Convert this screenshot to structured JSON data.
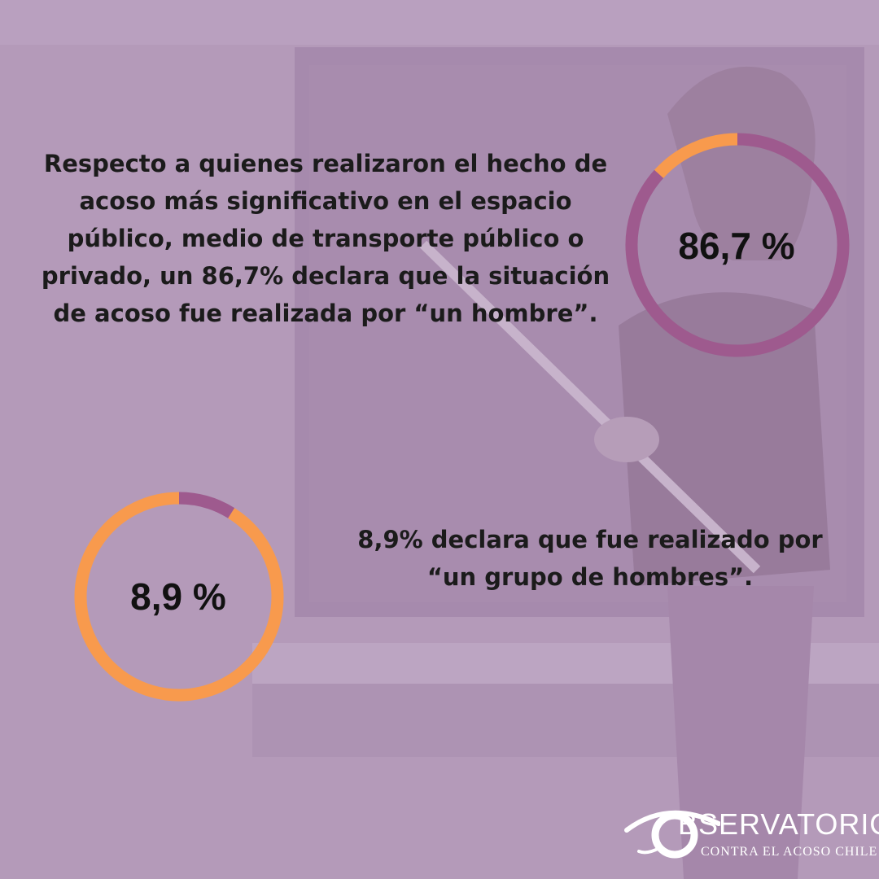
{
  "statement_1": "Respecto a quienes realizaron el hecho de acoso más significativo en el espacio público, medio de transporte público o privado, un 86,7% declara que la situación de acoso fue realizada por “un hombre”.",
  "statement_2": "8,9% declara que fue realizado por “un grupo de hombres”.",
  "logo": {
    "letter": "O",
    "word": "BSERVATORIO",
    "subtitle": "CONTRA EL ACOSO CHILE"
  },
  "colors": {
    "background": "#b49ab9",
    "purple": "#9e5a8e",
    "orange": "#f89a4d",
    "text": "#1b1b1b"
  },
  "chart_data": [
    {
      "type": "pie",
      "style": "donut",
      "label": "86,7 %",
      "values": [
        86.7,
        13.3
      ],
      "colors": [
        "#9e5a8e",
        "#f89a4d"
      ]
    },
    {
      "type": "pie",
      "style": "donut",
      "label": "8,9 %",
      "values": [
        8.9,
        91.1
      ],
      "colors": [
        "#9e5a8e",
        "#f89a4d"
      ]
    }
  ]
}
